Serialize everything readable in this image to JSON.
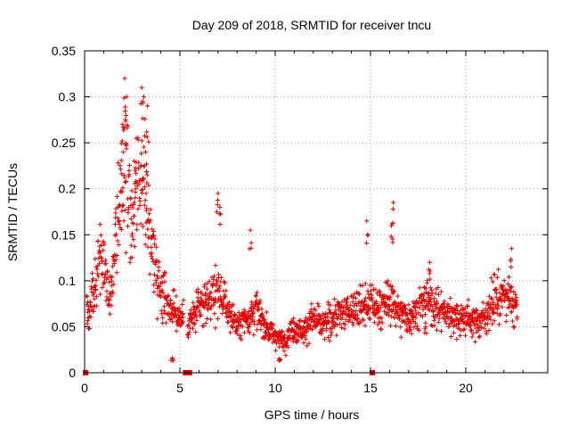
{
  "chart_data": {
    "type": "scatter",
    "title": "Day 209 of 2018, SRMTID for receiver tncu",
    "xlabel": "GPS time / hours",
    "ylabel": "SRMTID / TECUs",
    "xlim": [
      0,
      24.3
    ],
    "ylim": [
      0,
      0.35
    ],
    "x_ticks": [
      0,
      5,
      10,
      15,
      20
    ],
    "y_ticks": [
      0,
      0.05,
      0.1,
      0.15,
      0.2,
      0.25,
      0.3,
      0.35
    ],
    "x_tick_labels": [
      "0",
      "5",
      "10",
      "15",
      "20"
    ],
    "y_tick_labels": [
      "0",
      "0.05",
      "0.1",
      "0.15",
      "0.2",
      "0.25",
      "0.3",
      "0.35"
    ],
    "marker": "+",
    "color": "#e00000",
    "grid": true,
    "series": [
      {
        "name": "SRMTID",
        "profile": [
          [
            0.1,
            0.065
          ],
          [
            0.5,
            0.08
          ],
          [
            0.8,
            0.14
          ],
          [
            1.0,
            0.12
          ],
          [
            1.3,
            0.08
          ],
          [
            1.6,
            0.14
          ],
          [
            1.9,
            0.2
          ],
          [
            2.2,
            0.22
          ],
          [
            2.5,
            0.15
          ],
          [
            2.8,
            0.2
          ],
          [
            3.1,
            0.2
          ],
          [
            3.4,
            0.16
          ],
          [
            3.7,
            0.12
          ],
          [
            4.0,
            0.09
          ],
          [
            4.5,
            0.07
          ],
          [
            5.0,
            0.06
          ],
          [
            5.5,
            0.055
          ],
          [
            6.0,
            0.07
          ],
          [
            6.5,
            0.08
          ],
          [
            7.0,
            0.09
          ],
          [
            7.5,
            0.07
          ],
          [
            8.0,
            0.05
          ],
          [
            8.5,
            0.06
          ],
          [
            9.0,
            0.07
          ],
          [
            9.5,
            0.05
          ],
          [
            10.0,
            0.04
          ],
          [
            10.5,
            0.035
          ],
          [
            11.0,
            0.05
          ],
          [
            11.5,
            0.045
          ],
          [
            12.0,
            0.06
          ],
          [
            12.5,
            0.05
          ],
          [
            13.0,
            0.06
          ],
          [
            13.5,
            0.065
          ],
          [
            14.0,
            0.07
          ],
          [
            14.5,
            0.07
          ],
          [
            15.0,
            0.075
          ],
          [
            15.5,
            0.07
          ],
          [
            16.0,
            0.08
          ],
          [
            16.5,
            0.065
          ],
          [
            17.0,
            0.06
          ],
          [
            17.5,
            0.07
          ],
          [
            18.0,
            0.08
          ],
          [
            18.5,
            0.07
          ],
          [
            19.0,
            0.065
          ],
          [
            19.5,
            0.06
          ],
          [
            20.0,
            0.06
          ],
          [
            20.5,
            0.055
          ],
          [
            21.0,
            0.06
          ],
          [
            21.5,
            0.08
          ],
          [
            22.0,
            0.085
          ],
          [
            22.5,
            0.075
          ],
          [
            22.7,
            0.07
          ]
        ],
        "spikes": [
          [
            2.1,
            0.32
          ],
          [
            2.2,
            0.3
          ],
          [
            2.0,
            0.27
          ],
          [
            3.0,
            0.31
          ],
          [
            3.1,
            0.3
          ],
          [
            3.3,
            0.29
          ],
          [
            3.2,
            0.24
          ],
          [
            2.6,
            0.23
          ],
          [
            7.0,
            0.195
          ],
          [
            7.1,
            0.18
          ],
          [
            14.8,
            0.165
          ],
          [
            16.2,
            0.185
          ],
          [
            16.1,
            0.16
          ],
          [
            8.7,
            0.155
          ],
          [
            22.4,
            0.135
          ],
          [
            4.6,
            0.016
          ],
          [
            10.2,
            0.015
          ],
          [
            17.9,
            0.05
          ],
          [
            18.1,
            0.12
          ]
        ]
      }
    ],
    "gap_markers_x": [
      0.05,
      5.3,
      5.5,
      15.1
    ]
  }
}
